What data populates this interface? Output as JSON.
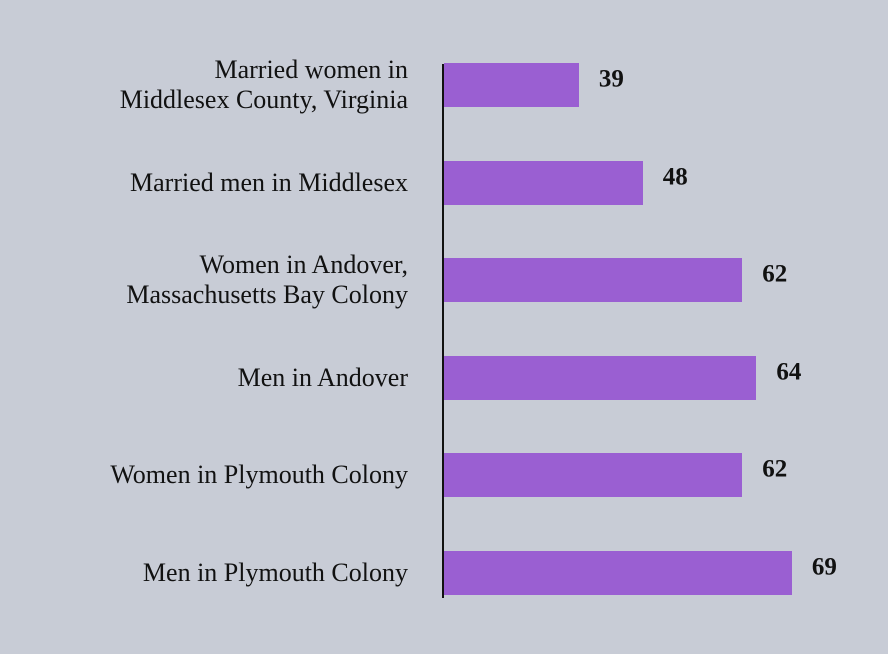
{
  "chart_data": {
    "type": "bar",
    "orientation": "horizontal",
    "categories": [
      "Married women in\nMiddlesex County, Virginia",
      "Married men in Middlesex",
      "Women in Andover,\nMassachusetts Bay Colony",
      "Men in Andover",
      "Women in Plymouth Colony",
      "Men in Plymouth Colony"
    ],
    "values": [
      39,
      48,
      62,
      64,
      62,
      69
    ],
    "color": "#9a5fd2",
    "xlim": [
      20,
      70
    ]
  }
}
